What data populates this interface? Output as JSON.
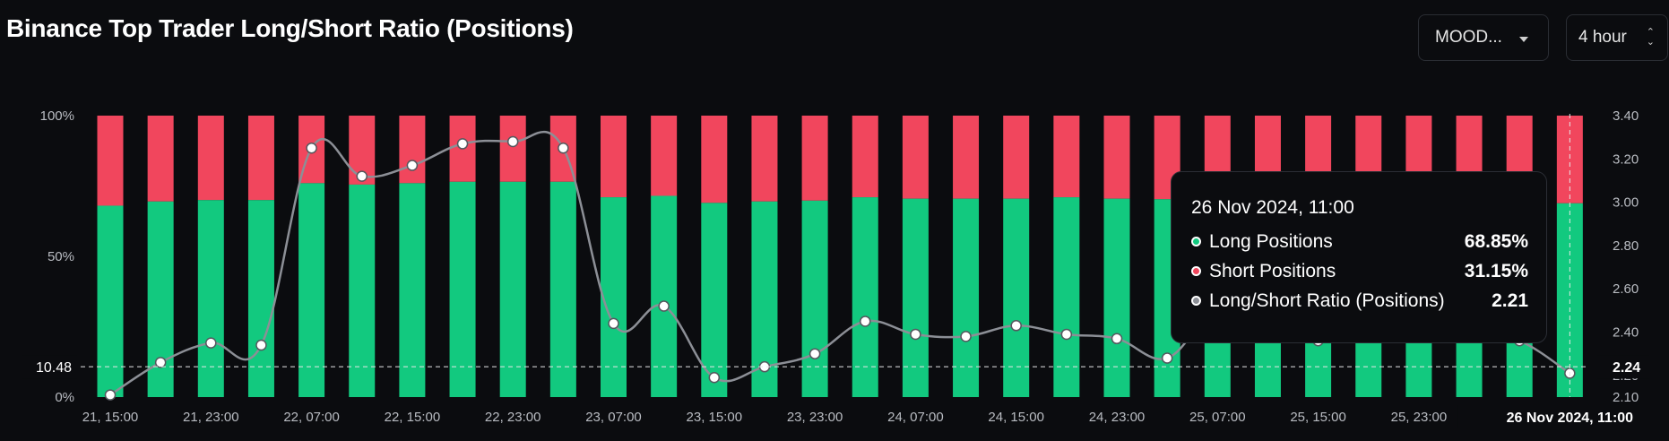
{
  "title": "Binance Top Trader Long/Short Ratio (Positions)",
  "controls": {
    "symbol_label": "MOOD...",
    "interval_label": "4 hour"
  },
  "colors": {
    "long": "#12c97f",
    "short": "#f1465d",
    "ratio_line": "#8c8f96",
    "background": "#0b0c0f"
  },
  "chart_data": {
    "type": "bar",
    "stacked": true,
    "x_tick_labels": [
      "21, 15:00",
      "21, 23:00",
      "22, 07:00",
      "22, 15:00",
      "22, 23:00",
      "23, 07:00",
      "23, 15:00",
      "23, 23:00",
      "24, 07:00",
      "24, 15:00",
      "24, 23:00",
      "25, 07:00",
      "25, 15:00",
      "25, 23:00",
      "2"
    ],
    "x_highlight_label": "26 Nov 2024, 11:00",
    "left_axis": {
      "ticks": [
        "100%",
        "50%",
        "0%"
      ],
      "ylim": [
        0,
        100
      ]
    },
    "right_axis": {
      "ticks": [
        "3.40",
        "3.20",
        "3.00",
        "2.80",
        "2.60",
        "2.40",
        "2.20",
        "2.10"
      ],
      "ylim": [
        2.1,
        3.4
      ]
    },
    "crosshair": {
      "left_label": "10.48",
      "right_label": "2.24"
    },
    "series": [
      {
        "name": "Long Positions",
        "values": [
          68,
          69.5,
          70,
          70,
          76,
          75.5,
          76,
          76.5,
          76.5,
          76.5,
          71,
          71.5,
          69,
          69.5,
          69.8,
          71,
          70.5,
          70.5,
          70.5,
          71,
          70.5,
          70.3,
          69.3,
          71,
          70.5,
          70.5,
          70.5,
          70.5,
          70.5,
          68.85
        ]
      },
      {
        "name": "Short Positions",
        "values": [
          32,
          30.5,
          30,
          30,
          24,
          24.5,
          24,
          23.5,
          23.5,
          23.5,
          29,
          28.5,
          31,
          30.5,
          30.2,
          29,
          29.5,
          29.5,
          29.5,
          29,
          29.5,
          29.7,
          30.7,
          29,
          29.5,
          29.5,
          29.5,
          29.5,
          29.5,
          31.15
        ]
      },
      {
        "name": "Long/Short Ratio (Positions)",
        "axis": "right",
        "values": [
          2.11,
          2.26,
          2.35,
          2.34,
          3.25,
          3.12,
          3.17,
          3.27,
          3.28,
          3.25,
          2.44,
          2.52,
          2.19,
          2.24,
          2.3,
          2.45,
          2.39,
          2.38,
          2.43,
          2.39,
          2.37,
          2.28,
          2.52,
          2.5,
          2.36,
          2.4,
          2.4,
          2.4,
          2.36,
          2.21
        ]
      }
    ],
    "tooltip": {
      "date": "26 Nov 2024, 11:00",
      "rows": [
        {
          "label": "Long Positions",
          "value": "68.85%",
          "color": "#12c97f"
        },
        {
          "label": "Short Positions",
          "value": "31.15%",
          "color": "#f1465d"
        },
        {
          "label": "Long/Short Ratio (Positions)",
          "value": "2.21",
          "color": "#8c8f96"
        }
      ]
    }
  }
}
